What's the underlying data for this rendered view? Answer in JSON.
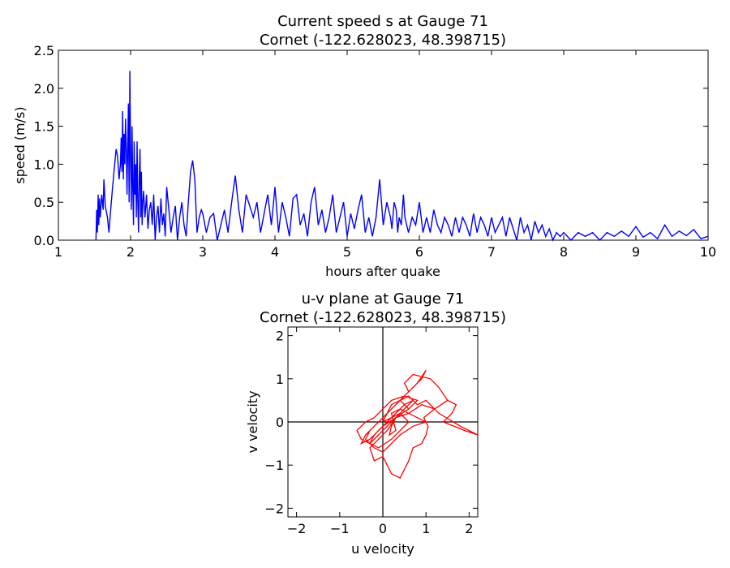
{
  "chart_data": [
    {
      "type": "line",
      "title": "Current speed s at Gauge 71",
      "subtitle": "Cornet  (-122.628023, 48.398715)",
      "xlabel": "hours after quake",
      "ylabel": "speed (m/s)",
      "xlim": [
        1,
        10
      ],
      "ylim": [
        0,
        2.5
      ],
      "xticks": [
        "1",
        "2",
        "3",
        "4",
        "5",
        "6",
        "7",
        "8",
        "9",
        "10"
      ],
      "yticks": [
        "0.0",
        "0.5",
        "1.0",
        "1.5",
        "2.0",
        "2.5"
      ],
      "line_color": "#0000ff",
      "grid": false,
      "series": [
        {
          "x": [
            1.52,
            1.53,
            1.54,
            1.55,
            1.56,
            1.57,
            1.58,
            1.6,
            1.62,
            1.63,
            1.65,
            1.68,
            1.7,
            1.72,
            1.75,
            1.78,
            1.8,
            1.82,
            1.84,
            1.86,
            1.87,
            1.88,
            1.89,
            1.9,
            1.91,
            1.92,
            1.93,
            1.94,
            1.95,
            1.96,
            1.97,
            1.98,
            1.99,
            2.0,
            2.01,
            2.02,
            2.03,
            2.04,
            2.05,
            2.06,
            2.07,
            2.08,
            2.09,
            2.1,
            2.11,
            2.12,
            2.13,
            2.14,
            2.15,
            2.16,
            2.17,
            2.18,
            2.2,
            2.22,
            2.24,
            2.26,
            2.28,
            2.3,
            2.32,
            2.34,
            2.36,
            2.38,
            2.4,
            2.42,
            2.44,
            2.46,
            2.48,
            2.5,
            2.53,
            2.56,
            2.59,
            2.62,
            2.65,
            2.68,
            2.71,
            2.74,
            2.77,
            2.8,
            2.83,
            2.86,
            2.89,
            2.92,
            2.95,
            2.98,
            3.0,
            3.05,
            3.1,
            3.15,
            3.2,
            3.25,
            3.3,
            3.35,
            3.4,
            3.45,
            3.5,
            3.55,
            3.6,
            3.65,
            3.7,
            3.75,
            3.8,
            3.85,
            3.9,
            3.95,
            4.0,
            4.05,
            4.1,
            4.15,
            4.2,
            4.25,
            4.3,
            4.35,
            4.4,
            4.45,
            4.5,
            4.55,
            4.6,
            4.65,
            4.7,
            4.75,
            4.8,
            4.85,
            4.9,
            4.95,
            5.0,
            5.05,
            5.1,
            5.15,
            5.2,
            5.25,
            5.3,
            5.35,
            5.4,
            5.45,
            5.5,
            5.55,
            5.6,
            5.62,
            5.65,
            5.68,
            5.7,
            5.72,
            5.75,
            5.78,
            5.8,
            5.85,
            5.9,
            5.95,
            6.0,
            6.05,
            6.1,
            6.15,
            6.2,
            6.25,
            6.3,
            6.35,
            6.4,
            6.45,
            6.5,
            6.55,
            6.6,
            6.65,
            6.7,
            6.75,
            6.8,
            6.85,
            6.9,
            6.95,
            7.0,
            7.05,
            7.1,
            7.15,
            7.2,
            7.25,
            7.3,
            7.35,
            7.4,
            7.45,
            7.5,
            7.55,
            7.6,
            7.65,
            7.7,
            7.75,
            7.8,
            7.85,
            7.9,
            7.95,
            8.0,
            8.1,
            8.2,
            8.3,
            8.4,
            8.5,
            8.6,
            8.7,
            8.8,
            8.9,
            9.0,
            9.1,
            9.2,
            9.3,
            9.4,
            9.5,
            9.6,
            9.7,
            9.8,
            9.9,
            10.0
          ],
          "y": [
            0.0,
            0.4,
            0.1,
            0.6,
            0.2,
            0.55,
            0.3,
            0.6,
            0.4,
            0.8,
            0.45,
            0.3,
            0.1,
            0.35,
            0.7,
            1.0,
            1.2,
            1.1,
            0.8,
            1.0,
            1.35,
            0.9,
            1.7,
            0.8,
            1.4,
            1.0,
            1.6,
            1.2,
            0.6,
            1.2,
            1.8,
            0.5,
            2.23,
            1.1,
            0.4,
            1.5,
            0.7,
            0.2,
            1.3,
            0.6,
            1.0,
            0.3,
            1.3,
            0.5,
            0.1,
            0.8,
            1.2,
            0.3,
            0.9,
            0.2,
            0.5,
            0.65,
            0.3,
            0.6,
            0.15,
            0.4,
            0.5,
            0.2,
            0.6,
            0.0,
            0.3,
            0.45,
            0.1,
            0.55,
            0.2,
            0.35,
            0.05,
            0.7,
            0.4,
            0.1,
            0.3,
            0.45,
            0.0,
            0.3,
            0.5,
            0.2,
            0.05,
            0.5,
            0.9,
            1.05,
            0.8,
            0.1,
            0.3,
            0.4,
            0.35,
            0.1,
            0.3,
            0.35,
            0.0,
            0.2,
            0.4,
            0.1,
            0.5,
            0.85,
            0.4,
            0.1,
            0.6,
            0.45,
            0.3,
            0.5,
            0.1,
            0.35,
            0.6,
            0.2,
            0.7,
            0.1,
            0.5,
            0.3,
            0.05,
            0.55,
            0.6,
            0.2,
            0.35,
            0.05,
            0.5,
            0.7,
            0.2,
            0.4,
            0.1,
            0.3,
            0.6,
            0.1,
            0.3,
            0.5,
            0.05,
            0.35,
            0.15,
            0.4,
            0.6,
            0.1,
            0.3,
            0.05,
            0.3,
            0.8,
            0.2,
            0.5,
            0.3,
            0.15,
            0.5,
            0.4,
            0.1,
            0.3,
            0.2,
            0.6,
            0.3,
            0.1,
            0.3,
            0.2,
            0.5,
            0.1,
            0.3,
            0.1,
            0.4,
            0.2,
            0.1,
            0.3,
            0.2,
            0.05,
            0.3,
            0.1,
            0.3,
            0.2,
            0.05,
            0.35,
            0.1,
            0.3,
            0.2,
            0.05,
            0.3,
            0.1,
            0.2,
            0.3,
            0.05,
            0.3,
            0.15,
            0.0,
            0.3,
            0.1,
            0.2,
            0.0,
            0.25,
            0.1,
            0.2,
            0.05,
            0.15,
            0.0,
            0.1,
            0.05,
            0.1,
            0.0,
            0.1,
            0.05,
            0.1,
            0.0,
            0.1,
            0.05,
            0.12,
            0.05,
            0.18,
            0.04,
            0.1,
            0.02,
            0.2,
            0.05,
            0.12,
            0.06,
            0.14,
            0.02,
            0.05
          ]
        }
      ]
    },
    {
      "type": "line",
      "title": "u-v plane at Gauge 71",
      "subtitle": "Cornet  (-122.628023, 48.398715)",
      "xlabel": "u velocity",
      "ylabel": "v velocity",
      "xlim": [
        -2.2,
        2.2
      ],
      "ylim": [
        -2.2,
        2.2
      ],
      "xticks": [
        "−2",
        "−1",
        "0",
        "1",
        "2"
      ],
      "yticks": [
        "−2",
        "−1",
        "0",
        "1",
        "2"
      ],
      "line_color": "#ff0000",
      "axis_line_color": "#000000",
      "grid": false,
      "series": [
        {
          "u": [
            0.0,
            0.1,
            0.3,
            0.5,
            0.8,
            1.0,
            0.9,
            0.6,
            0.5,
            0.7,
            1.1,
            1.3,
            1.5,
            1.2,
            0.9,
            0.6,
            0.3,
            0.1,
            -0.1,
            -0.3,
            -0.2,
            0.0,
            0.2,
            0.4,
            0.5,
            0.6,
            0.7,
            0.9,
            1.0,
            1.05,
            0.95,
            1.2,
            1.5,
            1.7,
            1.6,
            1.4,
            1.9,
            2.2,
            1.8,
            1.3,
            1.0,
            0.8,
            0.6,
            0.4,
            0.2,
            0.0,
            -0.2,
            -0.4,
            -0.5,
            -0.3,
            -0.1,
            0.1,
            0.3,
            0.5,
            0.7,
            0.5,
            0.3,
            0.2,
            0.15,
            0.3,
            0.25,
            0.2,
            0.4,
            0.6,
            0.8,
            1.0,
            0.7,
            0.4,
            0.2,
            0.0,
            -0.2,
            -0.4,
            -0.3,
            -0.1,
            0.1,
            0.2,
            0.4,
            0.6,
            0.3,
            0.1,
            -0.1,
            -0.3,
            -0.5,
            -0.6,
            -0.4,
            -0.2,
            0.0,
            0.2,
            0.5,
            0.8,
            0.6,
            0.3,
            0.0,
            -0.2,
            -0.3,
            -0.1,
            0.2,
            0.4,
            0.6,
            0.4,
            0.2,
            0.0
          ],
          "v": [
            0.0,
            0.2,
            0.4,
            0.6,
            0.9,
            1.2,
            1.0,
            0.7,
            0.9,
            1.1,
            1.0,
            0.8,
            0.5,
            0.3,
            0.4,
            0.2,
            0.1,
            -0.2,
            -0.4,
            -0.6,
            -0.9,
            -0.8,
            -1.2,
            -1.3,
            -1.1,
            -0.9,
            -0.6,
            -0.5,
            -0.3,
            -0.1,
            0.1,
            0.3,
            0.5,
            0.4,
            0.2,
            0.0,
            -0.2,
            -0.3,
            -0.1,
            0.2,
            0.5,
            0.4,
            0.6,
            0.5,
            0.3,
            0.1,
            -0.1,
            -0.3,
            -0.5,
            -0.4,
            -0.2,
            0.0,
            0.2,
            0.4,
            0.5,
            0.3,
            0.1,
            -0.1,
            -0.3,
            -0.2,
            0.0,
            0.2,
            0.3,
            0.2,
            0.1,
            0.0,
            -0.1,
            -0.3,
            -0.5,
            -0.7,
            -0.6,
            -0.4,
            -0.2,
            0.0,
            0.2,
            0.4,
            0.5,
            0.3,
            0.1,
            -0.1,
            -0.3,
            -0.5,
            -0.4,
            -0.2,
            0.0,
            0.1,
            0.3,
            0.5,
            0.6,
            0.5,
            0.3,
            0.1,
            -0.1,
            -0.3,
            -0.5,
            -0.6,
            -0.4,
            -0.2,
            0.0,
            0.2,
            0.1,
            0.0
          ]
        }
      ]
    }
  ]
}
